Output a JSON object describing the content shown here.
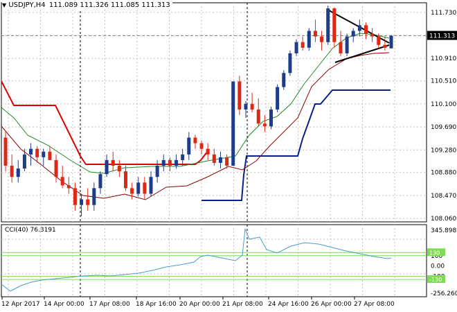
{
  "header": {
    "symbol_tf": "USDJPY,H4",
    "ohlc": "111.089 111.326 111.085 111.313"
  },
  "price_axis": {
    "ticks": [
      "111.730",
      "111.320",
      "110.910",
      "110.510",
      "110.100",
      "109.690",
      "109.280",
      "108.880",
      "108.470",
      "108.060"
    ],
    "current": "111.313"
  },
  "indicator": {
    "label": "CCI(40) 76.3191",
    "ticks": [
      "345.8982",
      "100",
      "0.00",
      "-100",
      "-256.2602"
    ],
    "level_tags": [
      "130",
      "-130"
    ]
  },
  "time_axis": {
    "labels": [
      "12 Apr 2017",
      "14 Apr 00:00",
      "17 Apr 08:00",
      "18 Apr 16:00",
      "20 Apr 00:00",
      "21 Apr 08:00",
      "24 Apr 16:00",
      "26 Apr 00:00",
      "27 Apr 08:00"
    ]
  },
  "colors": {
    "bull": "#1e3c8c",
    "bear": "#dc2814",
    "grid": "#c0c0c0",
    "upper_band": "#dc0000",
    "lower_band": "#0a1e8c",
    "ma_green": "#228822",
    "ma_dark": "#8b0000",
    "cci": "#46a0c8",
    "cci_levels": "#7ddc50"
  },
  "chart_data": {
    "type": "candlestick",
    "title": "USDJPY,H4",
    "ylim": [
      108.0,
      111.9
    ],
    "y_ticks": [
      111.73,
      111.32,
      110.91,
      110.51,
      110.1,
      109.69,
      109.28,
      108.88,
      108.47,
      108.06
    ],
    "candles": [
      [
        109.5,
        109.6,
        108.9,
        109.0
      ],
      [
        109.0,
        109.2,
        108.7,
        108.8
      ],
      [
        108.8,
        109.1,
        108.7,
        108.95
      ],
      [
        108.95,
        109.3,
        108.9,
        109.2
      ],
      [
        109.2,
        109.4,
        109.0,
        109.3
      ],
      [
        109.3,
        109.35,
        109.05,
        109.15
      ],
      [
        109.15,
        109.3,
        109.0,
        109.25
      ],
      [
        109.25,
        109.35,
        109.1,
        109.1
      ],
      [
        109.1,
        109.2,
        108.7,
        108.8
      ],
      [
        108.8,
        109.0,
        108.6,
        108.65
      ],
      [
        108.65,
        108.8,
        108.5,
        108.6
      ],
      [
        108.6,
        108.7,
        108.2,
        108.3
      ],
      [
        108.3,
        108.5,
        108.1,
        108.4
      ],
      [
        108.4,
        108.6,
        108.2,
        108.3
      ],
      [
        108.3,
        108.7,
        108.2,
        108.6
      ],
      [
        108.6,
        108.9,
        108.5,
        108.85
      ],
      [
        108.85,
        109.2,
        108.8,
        109.1
      ],
      [
        109.1,
        109.25,
        108.9,
        109.0
      ],
      [
        109.0,
        109.1,
        108.8,
        108.9
      ],
      [
        108.9,
        109.0,
        108.55,
        108.6
      ],
      [
        108.6,
        108.7,
        108.4,
        108.5
      ],
      [
        108.5,
        108.8,
        108.45,
        108.7
      ],
      [
        108.7,
        108.8,
        108.4,
        108.5
      ],
      [
        108.5,
        108.9,
        108.45,
        108.8
      ],
      [
        108.8,
        109.1,
        108.7,
        109.0
      ],
      [
        109.0,
        109.2,
        108.9,
        109.1
      ],
      [
        109.1,
        109.15,
        108.9,
        109.0
      ],
      [
        109.0,
        109.2,
        108.95,
        109.1
      ],
      [
        109.1,
        109.3,
        109.0,
        109.2
      ],
      [
        109.2,
        109.6,
        109.1,
        109.5
      ],
      [
        109.5,
        109.55,
        109.3,
        109.4
      ],
      [
        109.4,
        109.45,
        109.2,
        109.3
      ],
      [
        109.3,
        109.4,
        109.1,
        109.2
      ],
      [
        109.2,
        109.3,
        109.0,
        109.05
      ],
      [
        109.05,
        109.25,
        108.95,
        109.15
      ],
      [
        109.15,
        109.2,
        108.95,
        109.0
      ],
      [
        109.0,
        110.5,
        109.0,
        110.5
      ],
      [
        110.5,
        110.6,
        109.9,
        110.0
      ],
      [
        110.0,
        110.15,
        109.85,
        110.1
      ],
      [
        110.1,
        110.3,
        109.95,
        110.0
      ],
      [
        110.0,
        110.2,
        109.7,
        109.75
      ],
      [
        109.75,
        109.9,
        109.6,
        109.7
      ],
      [
        109.7,
        110.05,
        109.65,
        110.0
      ],
      [
        110.0,
        110.45,
        109.95,
        110.4
      ],
      [
        110.4,
        110.7,
        110.35,
        110.65
      ],
      [
        110.65,
        111.05,
        110.6,
        111.0
      ],
      [
        111.0,
        111.25,
        110.95,
        111.2
      ],
      [
        111.2,
        111.3,
        111.05,
        111.1
      ],
      [
        111.1,
        111.45,
        111.05,
        111.4
      ],
      [
        111.4,
        111.6,
        111.2,
        111.3
      ],
      [
        111.3,
        111.4,
        111.05,
        111.2
      ],
      [
        111.2,
        111.85,
        111.15,
        111.8
      ],
      [
        111.8,
        111.82,
        111.1,
        111.2
      ],
      [
        111.2,
        111.4,
        110.95,
        111.0
      ],
      [
        111.0,
        111.35,
        110.95,
        111.3
      ],
      [
        111.3,
        111.45,
        111.2,
        111.4
      ],
      [
        111.4,
        111.6,
        111.3,
        111.5
      ],
      [
        111.5,
        111.55,
        111.25,
        111.35
      ],
      [
        111.35,
        111.45,
        111.2,
        111.3
      ],
      [
        111.3,
        111.35,
        111.1,
        111.15
      ],
      [
        111.15,
        111.3,
        111.05,
        111.1
      ],
      [
        111.089,
        111.326,
        111.085,
        111.313
      ]
    ]
  }
}
